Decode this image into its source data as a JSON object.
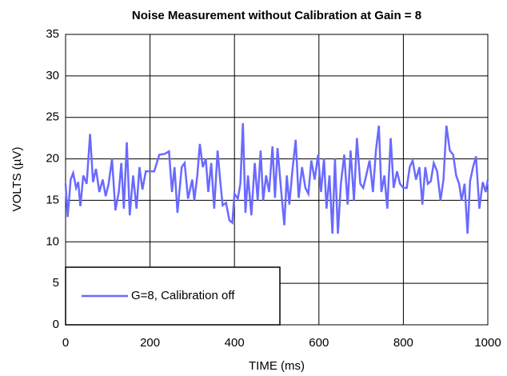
{
  "chart_data": {
    "type": "line",
    "title": "Noise Measurement without Calibration at Gain = 8",
    "xlabel": "TIME (ms)",
    "ylabel": "VOLTS (µV)",
    "xlim": [
      0,
      1000
    ],
    "ylim": [
      0,
      35
    ],
    "xticks": [
      0,
      200,
      400,
      600,
      800,
      1000
    ],
    "yticks": [
      0,
      5,
      10,
      15,
      20,
      25,
      30,
      35
    ],
    "grid": true,
    "legend": "lower left",
    "x": [
      0,
      5,
      12,
      18,
      25,
      30,
      35,
      42,
      50,
      58,
      65,
      72,
      80,
      88,
      95,
      102,
      110,
      118,
      126,
      132,
      138,
      145,
      152,
      160,
      168,
      175,
      182,
      190,
      200,
      210,
      222,
      235,
      245,
      252,
      258,
      265,
      275,
      282,
      290,
      300,
      305,
      312,
      318,
      325,
      332,
      338,
      345,
      352,
      360,
      366,
      372,
      380,
      388,
      395,
      400,
      408,
      414,
      420,
      426,
      432,
      440,
      448,
      455,
      462,
      468,
      475,
      482,
      490,
      496,
      502,
      510,
      518,
      524,
      530,
      537,
      545,
      552,
      560,
      568,
      575,
      582,
      590,
      598,
      605,
      612,
      618,
      625,
      632,
      638,
      645,
      652,
      660,
      668,
      675,
      683,
      690,
      698,
      705,
      712,
      720,
      728,
      735,
      742,
      748,
      755,
      762,
      770,
      777,
      785,
      792,
      800,
      808,
      815,
      822,
      830,
      838,
      845,
      852,
      858,
      865,
      872,
      880,
      888,
      895,
      902,
      910,
      918,
      925,
      932,
      938,
      945,
      952,
      958,
      965,
      972,
      980,
      988,
      995,
      1000
    ],
    "series": [
      {
        "name": "G=8, Calibration off",
        "color": "#6a6aff",
        "values": [
          17,
          13,
          17.5,
          18.3,
          16.5,
          17.2,
          14.3,
          18,
          17,
          23,
          17.2,
          18.8,
          16,
          17.5,
          15.5,
          17,
          20,
          13.8,
          16,
          19.5,
          14,
          22,
          13.2,
          18,
          14,
          19,
          16.3,
          18.5,
          18.5,
          18.5,
          20.5,
          20.6,
          20.9,
          16,
          19,
          13.5,
          19,
          19.5,
          15.2,
          17.5,
          15,
          18,
          21.8,
          19,
          20,
          16,
          19.5,
          14,
          21,
          17.5,
          14.4,
          14.7,
          12.6,
          12.3,
          15.8,
          15.2,
          17,
          24.3,
          13.5,
          18,
          13.2,
          19.5,
          15,
          21,
          15,
          18,
          16,
          21.5,
          15.3,
          21.3,
          16.5,
          12,
          18,
          14.5,
          18.5,
          22.3,
          15.3,
          19,
          16.5,
          15.8,
          19.8,
          17.5,
          20.5,
          16,
          20,
          14,
          18,
          11,
          20,
          11,
          17,
          20.5,
          14.5,
          21,
          15,
          22.5,
          17,
          16.5,
          18,
          19.8,
          16,
          21,
          24,
          16,
          18,
          14,
          22.5,
          16.5,
          18.5,
          17,
          16.5,
          16.5,
          19,
          19.8,
          17.5,
          19,
          14.5,
          19,
          17,
          17.3,
          19.5,
          18.5,
          15,
          17.5,
          24,
          21,
          20.5,
          18,
          17,
          15,
          17,
          11,
          17.3,
          19,
          20.3,
          14,
          17.2,
          16,
          17.5
        ]
      }
    ]
  }
}
